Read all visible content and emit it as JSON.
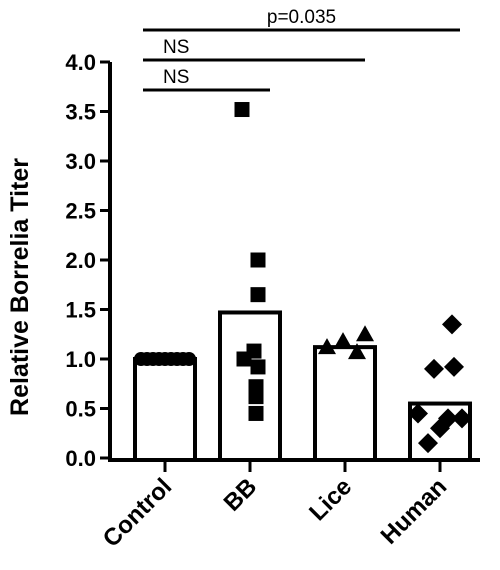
{
  "chart_data": {
    "type": "bar",
    "title": "",
    "xlabel": "",
    "ylabel": "Relative Borrelia Titer",
    "ylim": [
      0,
      4.0
    ],
    "yticks": [
      "0.0",
      "0.5",
      "1.0",
      "1.5",
      "2.0",
      "2.5",
      "3.0",
      "3.5",
      "4.0"
    ],
    "grid": false,
    "categories": [
      "Control",
      "BB",
      "Lice",
      "Human"
    ],
    "values": [
      1.0,
      1.47,
      1.12,
      0.55
    ],
    "points": [
      {
        "category": "Control",
        "marker": "circle",
        "values": [
          1.0,
          1.0,
          1.0,
          1.0,
          1.0,
          1.0,
          1.0,
          1.0,
          1.0
        ]
      },
      {
        "category": "BB",
        "marker": "square",
        "values": [
          3.52,
          2.0,
          1.65,
          1.08,
          1.0,
          0.92,
          0.72,
          0.62,
          0.45
        ]
      },
      {
        "category": "Lice",
        "marker": "triangle",
        "values": [
          1.12,
          1.18,
          1.25,
          1.07
        ]
      },
      {
        "category": "Human",
        "marker": "diamond",
        "values": [
          1.35,
          0.92,
          0.9,
          0.45,
          0.4,
          0.4,
          0.3,
          0.15
        ]
      }
    ],
    "comparisons": [
      {
        "from": "Control",
        "to": "BB",
        "label": "NS"
      },
      {
        "from": "Control",
        "to": "Lice",
        "label": "NS"
      },
      {
        "from": "Control",
        "to": "Human",
        "label": "p=0.035"
      }
    ],
    "colors": {
      "bar_fill": "#ffffff",
      "stroke": "#000000",
      "marker": "#000000"
    }
  }
}
